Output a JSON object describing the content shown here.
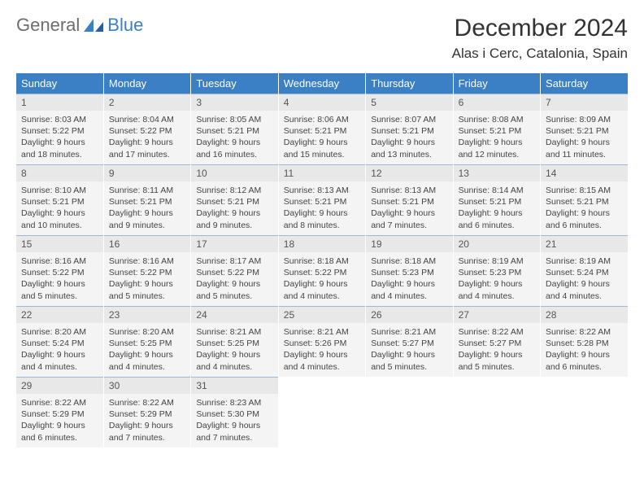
{
  "brand": {
    "part1": "General",
    "part2": "Blue"
  },
  "title": "December 2024",
  "location": "Alas i Cerc, Catalonia, Spain",
  "colors": {
    "header_bg": "#3b7fc4",
    "header_text": "#ffffff",
    "daynum_bg": "#e8e8e8",
    "daybody_bg": "#f4f4f4",
    "rule": "#9fb8d4",
    "brand_gray": "#6d6d6d",
    "brand_blue": "#3b7fc4"
  },
  "weekdays": [
    "Sunday",
    "Monday",
    "Tuesday",
    "Wednesday",
    "Thursday",
    "Friday",
    "Saturday"
  ],
  "weeks": [
    [
      {
        "n": "1",
        "sr": "8:03 AM",
        "ss": "5:22 PM",
        "dl": "9 hours and 18 minutes."
      },
      {
        "n": "2",
        "sr": "8:04 AM",
        "ss": "5:22 PM",
        "dl": "9 hours and 17 minutes."
      },
      {
        "n": "3",
        "sr": "8:05 AM",
        "ss": "5:21 PM",
        "dl": "9 hours and 16 minutes."
      },
      {
        "n": "4",
        "sr": "8:06 AM",
        "ss": "5:21 PM",
        "dl": "9 hours and 15 minutes."
      },
      {
        "n": "5",
        "sr": "8:07 AM",
        "ss": "5:21 PM",
        "dl": "9 hours and 13 minutes."
      },
      {
        "n": "6",
        "sr": "8:08 AM",
        "ss": "5:21 PM",
        "dl": "9 hours and 12 minutes."
      },
      {
        "n": "7",
        "sr": "8:09 AM",
        "ss": "5:21 PM",
        "dl": "9 hours and 11 minutes."
      }
    ],
    [
      {
        "n": "8",
        "sr": "8:10 AM",
        "ss": "5:21 PM",
        "dl": "9 hours and 10 minutes."
      },
      {
        "n": "9",
        "sr": "8:11 AM",
        "ss": "5:21 PM",
        "dl": "9 hours and 9 minutes."
      },
      {
        "n": "10",
        "sr": "8:12 AM",
        "ss": "5:21 PM",
        "dl": "9 hours and 9 minutes."
      },
      {
        "n": "11",
        "sr": "8:13 AM",
        "ss": "5:21 PM",
        "dl": "9 hours and 8 minutes."
      },
      {
        "n": "12",
        "sr": "8:13 AM",
        "ss": "5:21 PM",
        "dl": "9 hours and 7 minutes."
      },
      {
        "n": "13",
        "sr": "8:14 AM",
        "ss": "5:21 PM",
        "dl": "9 hours and 6 minutes."
      },
      {
        "n": "14",
        "sr": "8:15 AM",
        "ss": "5:21 PM",
        "dl": "9 hours and 6 minutes."
      }
    ],
    [
      {
        "n": "15",
        "sr": "8:16 AM",
        "ss": "5:22 PM",
        "dl": "9 hours and 5 minutes."
      },
      {
        "n": "16",
        "sr": "8:16 AM",
        "ss": "5:22 PM",
        "dl": "9 hours and 5 minutes."
      },
      {
        "n": "17",
        "sr": "8:17 AM",
        "ss": "5:22 PM",
        "dl": "9 hours and 5 minutes."
      },
      {
        "n": "18",
        "sr": "8:18 AM",
        "ss": "5:22 PM",
        "dl": "9 hours and 4 minutes."
      },
      {
        "n": "19",
        "sr": "8:18 AM",
        "ss": "5:23 PM",
        "dl": "9 hours and 4 minutes."
      },
      {
        "n": "20",
        "sr": "8:19 AM",
        "ss": "5:23 PM",
        "dl": "9 hours and 4 minutes."
      },
      {
        "n": "21",
        "sr": "8:19 AM",
        "ss": "5:24 PM",
        "dl": "9 hours and 4 minutes."
      }
    ],
    [
      {
        "n": "22",
        "sr": "8:20 AM",
        "ss": "5:24 PM",
        "dl": "9 hours and 4 minutes."
      },
      {
        "n": "23",
        "sr": "8:20 AM",
        "ss": "5:25 PM",
        "dl": "9 hours and 4 minutes."
      },
      {
        "n": "24",
        "sr": "8:21 AM",
        "ss": "5:25 PM",
        "dl": "9 hours and 4 minutes."
      },
      {
        "n": "25",
        "sr": "8:21 AM",
        "ss": "5:26 PM",
        "dl": "9 hours and 4 minutes."
      },
      {
        "n": "26",
        "sr": "8:21 AM",
        "ss": "5:27 PM",
        "dl": "9 hours and 5 minutes."
      },
      {
        "n": "27",
        "sr": "8:22 AM",
        "ss": "5:27 PM",
        "dl": "9 hours and 5 minutes."
      },
      {
        "n": "28",
        "sr": "8:22 AM",
        "ss": "5:28 PM",
        "dl": "9 hours and 6 minutes."
      }
    ],
    [
      {
        "n": "29",
        "sr": "8:22 AM",
        "ss": "5:29 PM",
        "dl": "9 hours and 6 minutes."
      },
      {
        "n": "30",
        "sr": "8:22 AM",
        "ss": "5:29 PM",
        "dl": "9 hours and 7 minutes."
      },
      {
        "n": "31",
        "sr": "8:23 AM",
        "ss": "5:30 PM",
        "dl": "9 hours and 7 minutes."
      },
      null,
      null,
      null,
      null
    ]
  ],
  "labels": {
    "sunrise": "Sunrise:",
    "sunset": "Sunset:",
    "daylight": "Daylight:"
  }
}
